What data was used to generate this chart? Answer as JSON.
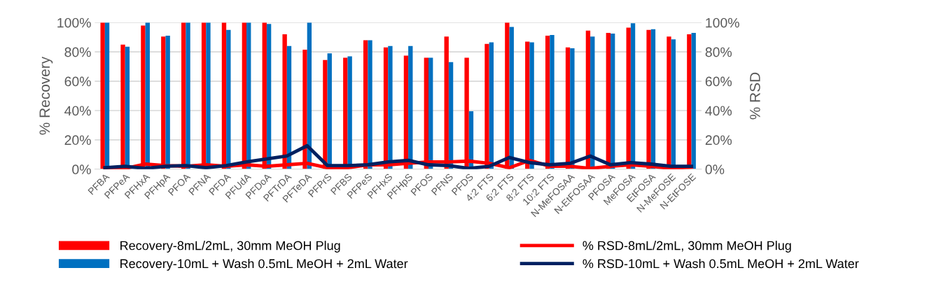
{
  "chart_data": {
    "type": "bar",
    "ylabel": "% Recovery",
    "y2label": "% RSD",
    "categories": [
      "PFBA",
      "PFPeA",
      "PFHxA",
      "PFHpA",
      "PFOA",
      "PFNA",
      "PFDA",
      "PFUdA",
      "PFDoA",
      "PFTrDA",
      "PFTeDA",
      "PFPrS",
      "PFBS",
      "PFPeS",
      "PFHxS",
      "PFHpS",
      "PFOS",
      "PFNS",
      "PFDS",
      "4:2 FTS",
      "6:2 FTS",
      "8:2 FTS",
      "10:2 FTS",
      "N-MeFOSAA",
      "N-EtFOSAA",
      "PFOSA",
      "MeFOSA",
      "EtFOSA",
      "N-MeFOSE",
      "N-EtFOSE"
    ],
    "series": [
      {
        "name": "Recovery-8mL/2mL, 30mm MeOH Plug",
        "color": "#ff0000",
        "values": [
          100,
          85,
          98,
          90.5,
          100,
          100,
          100,
          100,
          100,
          92,
          81.5,
          74.5,
          76,
          88,
          83,
          77.5,
          76,
          90.5,
          76,
          85.5,
          100,
          87,
          91,
          83,
          94.5,
          93,
          96.5,
          95,
          90.5,
          92
        ]
      },
      {
        "name": "Recovery-10mL + Wash 0.5mL MeOH + 2mL Water",
        "color": "#0070c0",
        "values": [
          100,
          83.5,
          100,
          91,
          100,
          100,
          95,
          100,
          99,
          84,
          100,
          79,
          77,
          88,
          84,
          84,
          76,
          73,
          39.5,
          86.5,
          97,
          86.5,
          91.5,
          82.5,
          90.5,
          92.5,
          99.5,
          95.5,
          88.5,
          93
        ]
      },
      {
        "name": "% RSD-8mL/2mL, 30mm MeOH Plug",
        "type": "line",
        "axis": "y2",
        "color": "#ff0000",
        "values": [
          1,
          0.5,
          3.5,
          2.5,
          2,
          3,
          2,
          3,
          2,
          3,
          4,
          1,
          1,
          3,
          3,
          4,
          5,
          5,
          5.5,
          4,
          1,
          6,
          2,
          2,
          0.5,
          2,
          3,
          2,
          0.5,
          1.5
        ]
      },
      {
        "name": "% RSD-10mL + Wash 0.5mL MeOH + 2mL Water",
        "type": "line",
        "axis": "y2",
        "color": "#002060",
        "values": [
          1,
          2,
          0.5,
          2,
          2.5,
          1,
          2.5,
          5,
          7,
          9,
          16,
          2.5,
          2.5,
          3,
          5,
          6,
          3,
          2.5,
          0.5,
          2,
          8,
          4.5,
          3,
          4,
          9,
          3,
          4.5,
          3.5,
          2,
          2
        ]
      }
    ],
    "ylim": [
      0,
      100
    ],
    "yticks": [
      {
        "value": 0,
        "label": "0%"
      },
      {
        "value": 20,
        "label": "20%"
      },
      {
        "value": 40,
        "label": "40%"
      },
      {
        "value": 60,
        "label": "60%"
      },
      {
        "value": 80,
        "label": "80%"
      },
      {
        "value": 100,
        "label": "100%"
      }
    ],
    "y2lim": [
      0,
      100
    ],
    "y2ticks": [
      {
        "value": 0,
        "label": "0%"
      },
      {
        "value": 20,
        "label": "20%"
      },
      {
        "value": 40,
        "label": "40%"
      },
      {
        "value": 60,
        "label": "60%"
      },
      {
        "value": 80,
        "label": "80%"
      },
      {
        "value": 100,
        "label": "100%"
      }
    ],
    "grid": "y",
    "legend": "bottom",
    "marker": "none",
    "line_style": "solid"
  }
}
